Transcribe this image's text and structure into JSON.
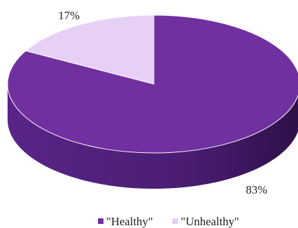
{
  "chart_data": {
    "type": "pie",
    "style": "3d",
    "title": "",
    "slices": [
      {
        "label": "\"Healthy\"",
        "value": 83,
        "value_label": "83%",
        "color": "#7030a0",
        "side_color": "#4a1d73"
      },
      {
        "label": "\"Unhealthy\"",
        "value": 17,
        "value_label": "17%",
        "color": "#e6d0f5",
        "side_color": "#b89ccc"
      }
    ],
    "legend": {
      "position": "bottom"
    }
  }
}
